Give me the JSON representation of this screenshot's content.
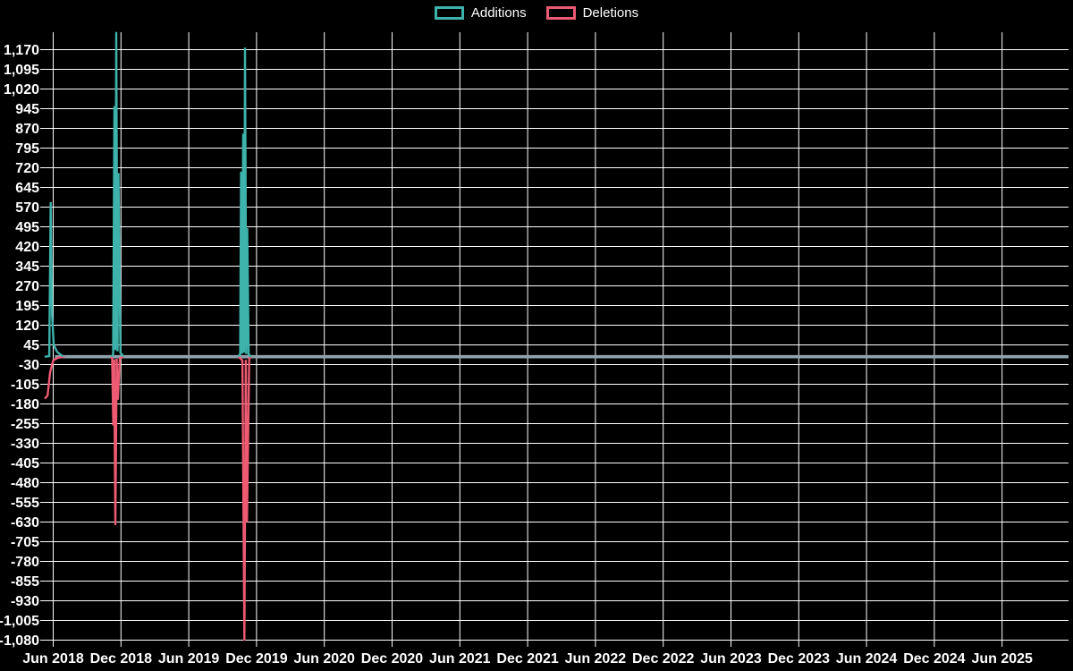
{
  "legend": {
    "items": [
      {
        "label": "Additions",
        "color": "#3db3ab"
      },
      {
        "label": "Deletions",
        "color": "#ed5a72"
      }
    ]
  },
  "chart_data": {
    "type": "line",
    "title": "",
    "xlabel": "",
    "ylabel": "",
    "background_color": "#000000",
    "grid_color": "#ffffff",
    "text_color": "#ffffff",
    "grid": "on",
    "legend_position": "top-center",
    "x_axis": {
      "unit": "months-since-Jun-2018",
      "tick_months": [
        0,
        6,
        12,
        18,
        24,
        30,
        36,
        42,
        48,
        54,
        60,
        66,
        72,
        78,
        84
      ],
      "tick_labels": [
        "Jun 2018",
        "Dec 2018",
        "Jun 2019",
        "Dec 2019",
        "Jun 2020",
        "Dec 2020",
        "Jun 2021",
        "Dec 2021",
        "Jun 2022",
        "Dec 2022",
        "Jun 2023",
        "Dec 2023",
        "Jun 2024",
        "Dec 2024",
        "Jun 2025"
      ],
      "domain_months": [
        -0.75,
        89.88
      ]
    },
    "y_axis": {
      "min": -1080,
      "max": 1170,
      "step": 75,
      "format": "thousands-comma",
      "domain": [
        -1105,
        1237
      ]
    },
    "baseline": {
      "name": "zero-baseline",
      "color": "#8fa3ad",
      "value": 0,
      "start_month": 0.15,
      "end_month": 89.88
    },
    "series": [
      {
        "name": "Additions",
        "color": "#3db3ab",
        "peaks": [
          589,
          1237,
          1178
        ],
        "segments": [
          [
            [
              -0.75,
              0
            ],
            [
              -0.35,
              2
            ],
            [
              -0.22,
              589
            ],
            [
              -0.1,
              160
            ],
            [
              0.05,
              45
            ],
            [
              0.35,
              18
            ],
            [
              0.9,
              0
            ]
          ],
          [
            [
              5.15,
              0
            ],
            [
              5.3,
              8
            ],
            [
              5.42,
              955
            ],
            [
              5.5,
              25
            ],
            [
              5.58,
              1237
            ],
            [
              5.7,
              20
            ],
            [
              5.78,
              700
            ],
            [
              5.95,
              15
            ],
            [
              6.25,
              0
            ]
          ],
          [
            [
              16.35,
              0
            ],
            [
              16.55,
              10
            ],
            [
              16.63,
              705
            ],
            [
              16.72,
              12
            ],
            [
              16.82,
              850
            ],
            [
              16.9,
              15
            ],
            [
              16.98,
              1178
            ],
            [
              17.1,
              10
            ],
            [
              17.18,
              490
            ],
            [
              17.3,
              8
            ],
            [
              17.55,
              0
            ]
          ]
        ]
      },
      {
        "name": "Deletions",
        "color": "#ed5a72",
        "peaks": [
          -160,
          -642,
          -1082
        ],
        "segments": [
          [
            [
              -0.75,
              -160
            ],
            [
              -0.5,
              -148
            ],
            [
              -0.28,
              -60
            ],
            [
              0.0,
              -14
            ],
            [
              0.4,
              -4
            ],
            [
              1.0,
              0
            ]
          ],
          [
            [
              5.1,
              0
            ],
            [
              5.22,
              -6
            ],
            [
              5.32,
              -262
            ],
            [
              5.4,
              -10
            ],
            [
              5.5,
              -642
            ],
            [
              5.62,
              -8
            ],
            [
              5.72,
              -164
            ],
            [
              5.9,
              -6
            ],
            [
              6.25,
              0
            ]
          ],
          [
            [
              16.4,
              0
            ],
            [
              16.6,
              -8
            ],
            [
              16.75,
              -15
            ],
            [
              16.92,
              -1082
            ],
            [
              17.05,
              -12
            ],
            [
              17.15,
              -630
            ],
            [
              17.35,
              -6
            ],
            [
              17.55,
              0
            ]
          ]
        ]
      }
    ]
  }
}
